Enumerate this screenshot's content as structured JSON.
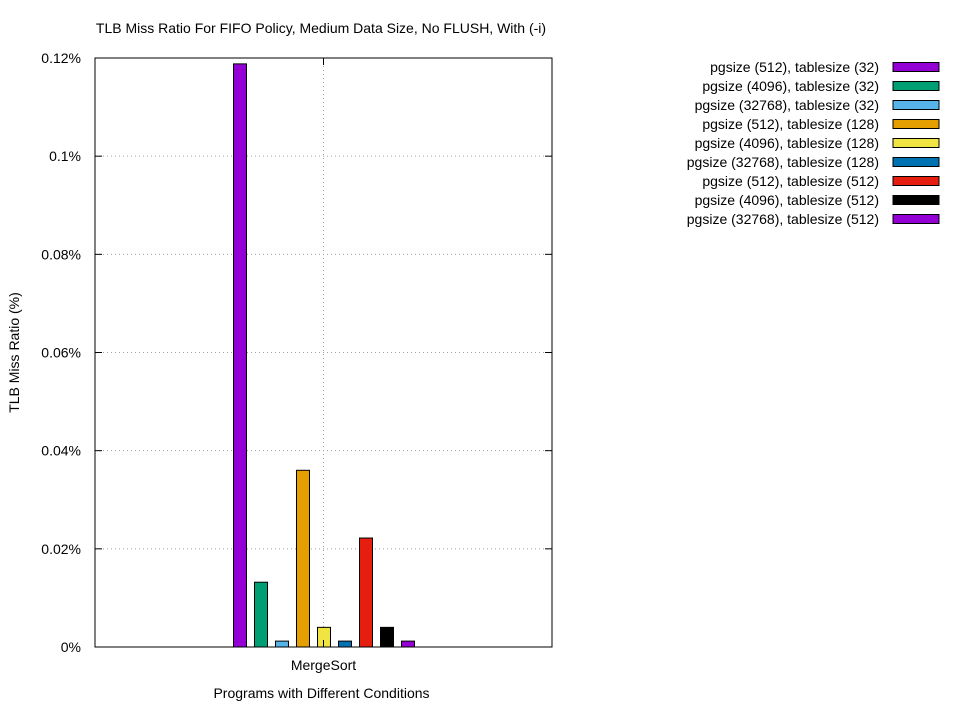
{
  "chart_data": {
    "type": "bar",
    "title": "TLB Miss Ratio For FIFO Policy, Medium Data Size, No FLUSH, With (-i)",
    "xlabel": "Programs with Different Conditions",
    "ylabel": "TLB Miss Ratio (%)",
    "categories": [
      "MergeSort"
    ],
    "ylim": [
      0,
      0.12
    ],
    "yticks": [
      0,
      0.02,
      0.04,
      0.06,
      0.08,
      0.1,
      0.12
    ],
    "ytick_labels": [
      "0%",
      "0.02%",
      "0.04%",
      "0.06%",
      "0.08%",
      "0.1%",
      "0.12%"
    ],
    "grid": true,
    "legend_position": "outside-right-top",
    "series": [
      {
        "name": "pgsize (512), tablesize (32)",
        "color": "#9400d3",
        "values": [
          0.1188
        ]
      },
      {
        "name": "pgsize (4096), tablesize (32)",
        "color": "#009e73",
        "values": [
          0.0132
        ]
      },
      {
        "name": "pgsize (32768), tablesize (32)",
        "color": "#56b4e9",
        "values": [
          0.0012
        ]
      },
      {
        "name": "pgsize (512), tablesize (128)",
        "color": "#e69f00",
        "values": [
          0.036
        ]
      },
      {
        "name": "pgsize (4096), tablesize (128)",
        "color": "#f0e442",
        "values": [
          0.004
        ]
      },
      {
        "name": "pgsize (32768), tablesize (128)",
        "color": "#0072b2",
        "values": [
          0.0012
        ]
      },
      {
        "name": "pgsize (512), tablesize (512)",
        "color": "#e51e10",
        "values": [
          0.0222
        ]
      },
      {
        "name": "pgsize (4096), tablesize (512)",
        "color": "#000000",
        "values": [
          0.004
        ]
      },
      {
        "name": "pgsize (32768), tablesize (512)",
        "color": "#9400d3",
        "values": [
          0.0012
        ]
      }
    ]
  }
}
